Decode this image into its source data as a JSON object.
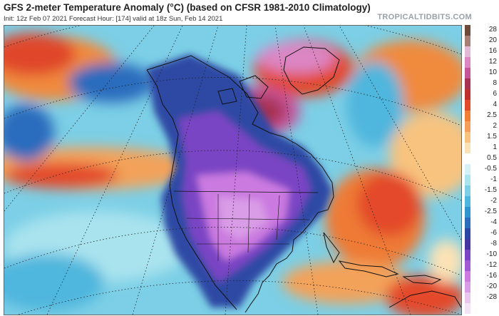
{
  "header": {
    "title": "GFS 2-meter Temperature Anomaly (°C) (based on CFSR 1981-2010 Climatology)",
    "subtitle": "Init: 12z Feb 07 2021   Forecast Hour: [174]   valid at 18z Sun, Feb 14 2021",
    "brand": "TROPICALTIDBITS.COM"
  },
  "legend": {
    "items": [
      {
        "label": "28",
        "color": "#6e4a3a"
      },
      {
        "label": "20",
        "color": "#a87f77"
      },
      {
        "label": "16",
        "color": "#e3b9d8"
      },
      {
        "label": "12",
        "color": "#dc86c4"
      },
      {
        "label": "10",
        "color": "#c6549b"
      },
      {
        "label": "8",
        "color": "#a73053"
      },
      {
        "label": "6",
        "color": "#bf2f2e"
      },
      {
        "label": "4",
        "color": "#e34a2b"
      },
      {
        "label": "2.5",
        "color": "#f07e35"
      },
      {
        "label": "2",
        "color": "#f5a05a"
      },
      {
        "label": "1.5",
        "color": "#f8c37f"
      },
      {
        "label": "1",
        "color": "#fbe2b6"
      },
      {
        "label": "0.5",
        "color": "#ffffff"
      },
      {
        "label": "-0.5",
        "color": "#d5f1f7"
      },
      {
        "label": "-1",
        "color": "#a9e3ee"
      },
      {
        "label": "-1.5",
        "color": "#7ccfe6"
      },
      {
        "label": "-2",
        "color": "#4fb6dd"
      },
      {
        "label": "-2.5",
        "color": "#2f95cf"
      },
      {
        "label": "-4",
        "color": "#2c6cbd"
      },
      {
        "label": "-6",
        "color": "#2d48a4"
      },
      {
        "label": "-8",
        "color": "#4636a1"
      },
      {
        "label": "-10",
        "color": "#7a45c4"
      },
      {
        "label": "-12",
        "color": "#a25ad4"
      },
      {
        "label": "-16",
        "color": "#cb7ae0"
      },
      {
        "label": "-20",
        "color": "#d99ce6"
      },
      {
        "label": "-28",
        "color": "#e9c6ee"
      },
      {
        "label": "",
        "color": "#f4e3f4"
      }
    ]
  },
  "map": {
    "ocean_color": "#6fc6e7",
    "warm_color": "#ee7a34",
    "cold_color": "#a35ed8",
    "land_outline_color": "#111111",
    "grid_color": "#222222"
  }
}
